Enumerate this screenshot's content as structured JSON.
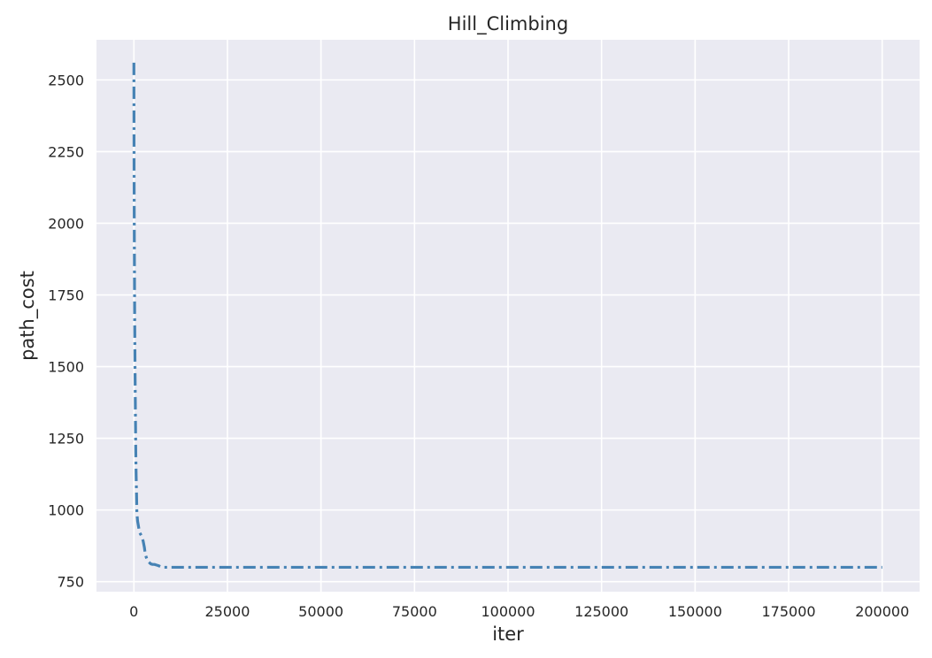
{
  "chart_data": {
    "type": "line",
    "title": "Hill_Climbing",
    "xlabel": "iter",
    "ylabel": "path_cost",
    "xlim": [
      -10000,
      210000
    ],
    "ylim": [
      715,
      2640
    ],
    "xticks": [
      0,
      25000,
      50000,
      75000,
      100000,
      125000,
      150000,
      175000,
      200000
    ],
    "yticks": [
      750,
      1000,
      1250,
      1500,
      1750,
      2000,
      2250,
      2500
    ],
    "grid": true,
    "legend": "none",
    "colors": {
      "background": "#eaeaf2",
      "grid": "#ffffff",
      "line": "#4682b4"
    },
    "series": [
      {
        "line_style": "dash-dot",
        "x": [
          0,
          50,
          100,
          200,
          300,
          400,
          500,
          600,
          700,
          800,
          900,
          1000,
          1200,
          1400,
          1600,
          1800,
          2000,
          2200,
          2500,
          2800,
          3000,
          3300,
          3600,
          4000,
          4500,
          5000,
          5500,
          6000,
          6500,
          7000,
          7500,
          8000,
          10000,
          20000,
          50000,
          100000,
          150000,
          200000
        ],
        "y": [
          2560,
          2200,
          2000,
          1700,
          1500,
          1350,
          1200,
          1120,
          1060,
          990,
          975,
          960,
          945,
          930,
          920,
          915,
          910,
          905,
          890,
          870,
          850,
          835,
          825,
          818,
          812,
          810,
          810,
          808,
          806,
          803,
          800,
          800,
          800,
          800,
          800,
          800,
          800,
          800
        ]
      }
    ]
  }
}
